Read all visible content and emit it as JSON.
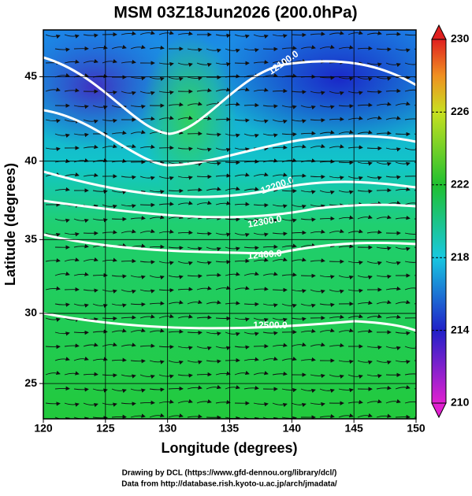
{
  "chart_data": {
    "type": "map",
    "title": "MSM 03Z18Jun2026 (200.0hPa)",
    "x_label": "Longitude (degrees)",
    "y_label": "Latitude  (degrees)",
    "projection": "mercator",
    "xlim": [
      120,
      150
    ],
    "xticks": [
      120,
      125,
      130,
      135,
      140,
      145,
      150
    ],
    "ylim": [
      22.4,
      47.6
    ],
    "yticks": [
      25,
      30,
      35,
      40,
      45
    ],
    "grid": true,
    "colorbar": {
      "lim": [
        210,
        230
      ],
      "ticks": [
        210,
        214,
        218,
        222,
        226,
        230
      ]
    },
    "contour_labels": [
      "12100.0",
      "12200.0",
      "12300.0",
      "12400.0",
      "12500.0"
    ],
    "credits": [
      "Drawing by DCL (https://www.gfd-dennou.org/library/dcl/)",
      "Data from http://database.rish.kyoto-u.ac.jp/arch/jmadata/"
    ]
  }
}
